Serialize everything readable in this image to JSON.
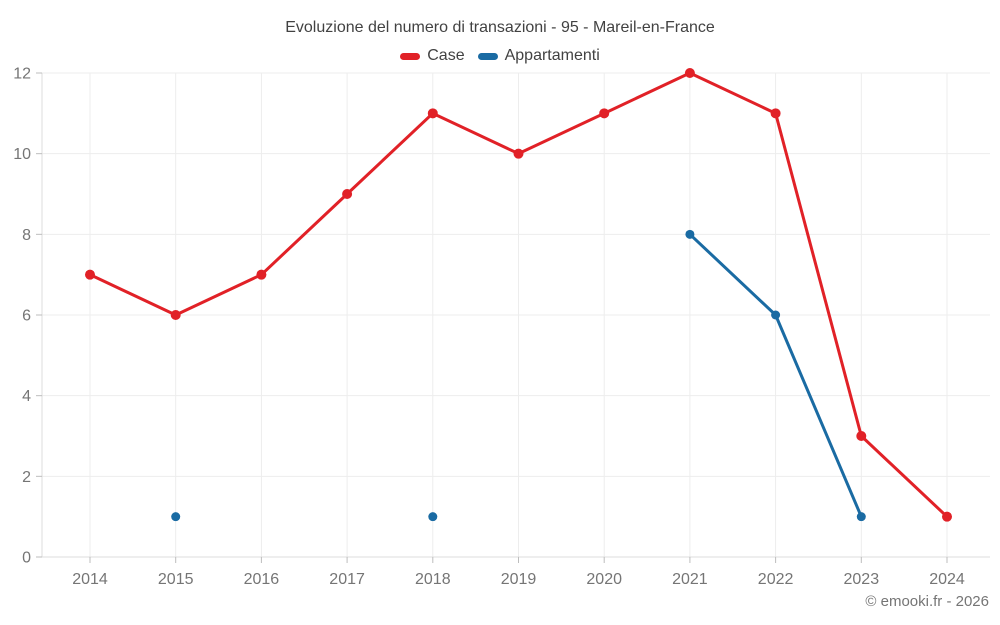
{
  "title": "Evoluzione del numero di transazioni - 95 - Mareil-en-France",
  "copyright": "© emooki.fr - 2026",
  "colors": {
    "case": "#e12127",
    "appartamenti": "#1a6ba3",
    "grid": "#ededed",
    "axis": "#dcdcdc",
    "tick": "#bdbdbd",
    "tick_label": "#757575",
    "title_text": "#424242"
  },
  "chart_data": {
    "type": "line",
    "title": "Evoluzione del numero di transazioni - 95 - Mareil-en-France",
    "x": [
      2014,
      2015,
      2016,
      2017,
      2018,
      2019,
      2020,
      2021,
      2022,
      2023,
      2024
    ],
    "series": [
      {
        "name": "Case",
        "color": "#e12127",
        "values": [
          7,
          6,
          7,
          9,
          11,
          10,
          11,
          12,
          11,
          3,
          1
        ]
      },
      {
        "name": "Appartamenti",
        "color": "#1a6ba3",
        "values": [
          null,
          1,
          null,
          null,
          1,
          null,
          null,
          8,
          6,
          1,
          null
        ]
      }
    ],
    "xlabel": "",
    "ylabel": "",
    "ylim": [
      0,
      12
    ],
    "yticks": [
      0,
      2,
      4,
      6,
      8,
      10,
      12
    ],
    "grid": true,
    "legend_position": "top",
    "annotation": "© emooki.fr - 2026"
  }
}
